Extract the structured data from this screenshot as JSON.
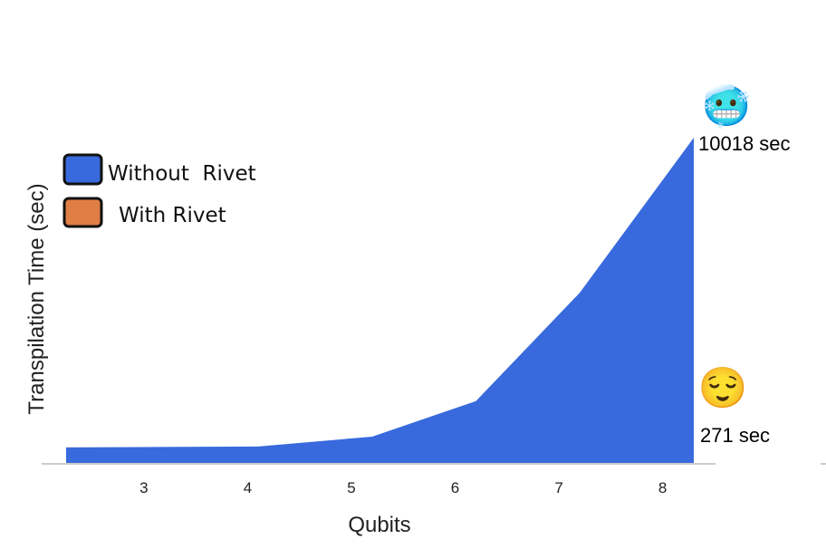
{
  "chart_data": {
    "type": "area",
    "x": [
      2.25,
      4.1,
      5.2,
      6.2,
      7.2,
      8.3
    ],
    "tick_labels": [
      "3",
      "4",
      "5",
      "6",
      "7",
      "8"
    ],
    "tick_values": [
      3,
      4,
      5,
      6,
      7,
      8
    ],
    "series": [
      {
        "name": "Without  Rivet",
        "color": "#386ADD",
        "values": [
          0,
          30,
          350,
          1500,
          5000,
          10018
        ]
      },
      {
        "name": "With Rivet",
        "color": "#E07E45",
        "values": [
          0,
          0,
          0,
          0,
          140,
          271
        ]
      }
    ],
    "xlabel": "Qubits",
    "ylabel": "Transpilation Time (sec)",
    "xlim": [
      2.25,
      8.3
    ],
    "ylim": [
      -530,
      10018
    ],
    "grid": false,
    "legend_position": "top-left",
    "annotations": [
      {
        "text": "10018 sec",
        "series": "Without  Rivet",
        "icon": "freezing-face-emoji",
        "emoji": "🥶"
      },
      {
        "text": "271 sec",
        "series": "With Rivet",
        "icon": "relieved-face-emoji",
        "emoji": "😌"
      }
    ]
  }
}
